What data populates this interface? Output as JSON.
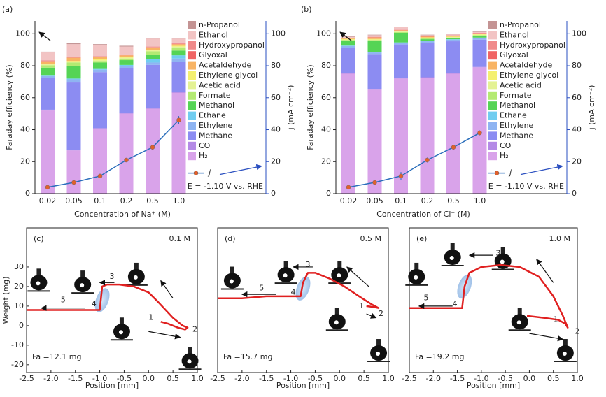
{
  "chart_data": [
    {
      "type": "bar",
      "stacked": true,
      "panel_label": "(a)",
      "xlabel": "Concentration of Na⁺ (M)",
      "ylabel": "Faraday efficiency (%)",
      "y2label": "j (mA cm⁻²)",
      "annotation": "E = -1.10 V vs. RHE",
      "categories": [
        "0.02",
        "0.05",
        "0.1",
        "0.2",
        "0.5",
        "1.0"
      ],
      "ylim": [
        0,
        108
      ],
      "yticks": [
        0,
        20,
        40,
        60,
        80,
        100
      ],
      "y2lim": [
        0,
        108
      ],
      "y2ticks": [
        0,
        20,
        40,
        60,
        80,
        100
      ],
      "series": [
        {
          "name": "H₂",
          "color": "#d9a3ea",
          "values": [
            52,
            27,
            40.5,
            50,
            53,
            63
          ]
        },
        {
          "name": "CO",
          "color": "#b48ae6",
          "values": [
            0.5,
            0.5,
            0.5,
            0.5,
            0.5,
            0.5
          ]
        },
        {
          "name": "Methane",
          "color": "#8c8cf2",
          "values": [
            20,
            42,
            35,
            28,
            27,
            19
          ]
        },
        {
          "name": "Ethylene",
          "color": "#8fb4f2",
          "values": [
            1,
            2,
            1.5,
            1.5,
            1.5,
            2
          ]
        },
        {
          "name": "Ethane",
          "color": "#70cdf0",
          "values": [
            0.3,
            0.5,
            0.5,
            0.5,
            2,
            2
          ]
        },
        {
          "name": "Methanol",
          "color": "#55d455",
          "values": [
            5,
            8,
            4,
            3,
            3,
            3
          ]
        },
        {
          "name": "Formate",
          "color": "#b4ea72",
          "values": [
            1.5,
            2,
            1,
            1,
            2,
            2
          ]
        },
        {
          "name": "Acetic acid",
          "color": "#e4f294",
          "values": [
            0.5,
            0.5,
            0.5,
            0.5,
            0.5,
            0.5
          ]
        },
        {
          "name": "Ethylene glycol",
          "color": "#f4f070",
          "values": [
            0.5,
            0.5,
            0.5,
            0.5,
            0.5,
            0.5
          ]
        },
        {
          "name": "Acetaldehyde",
          "color": "#f8b464",
          "values": [
            1.5,
            2,
            1.5,
            1,
            1.5,
            1
          ]
        },
        {
          "name": "Glyoxal",
          "color": "#f06464",
          "values": [
            0.2,
            0.2,
            0.2,
            0.2,
            0.2,
            0.2
          ]
        },
        {
          "name": "Hydroxypropanol",
          "color": "#f08a8a",
          "values": [
            0.3,
            0.3,
            0.3,
            0.3,
            0.3,
            0.3
          ]
        },
        {
          "name": "Ethanol",
          "color": "#f2c4c4",
          "values": [
            5,
            8,
            7,
            5,
            5,
            3
          ]
        },
        {
          "name": "n-Propanol",
          "color": "#c49494",
          "values": [
            0.5,
            0.5,
            0.5,
            0.5,
            0.5,
            0.5
          ]
        }
      ],
      "line_series": {
        "name": "j",
        "axis": "y2",
        "color": "#2a6ebb",
        "marker_color": "#e0602c",
        "values": [
          4,
          7,
          11,
          21,
          29,
          46
        ],
        "errors": [
          0.5,
          0.5,
          0.5,
          1,
          1.5,
          2.5
        ]
      }
    },
    {
      "type": "bar",
      "stacked": true,
      "panel_label": "(b)",
      "xlabel": "Concentration of Cl⁻ (M)",
      "ylabel": "Faraday efficiency (%)",
      "y2label": "j (mA cm⁻²)",
      "annotation": "E = -1.10 V vs. RHE",
      "categories": [
        "0.02",
        "0.05",
        "0.1",
        "0.2",
        "0.5",
        "1.0"
      ],
      "ylim": [
        0,
        108
      ],
      "yticks": [
        0,
        20,
        40,
        60,
        80,
        100
      ],
      "y2lim": [
        0,
        108
      ],
      "y2ticks": [
        0,
        20,
        40,
        60,
        80,
        100
      ],
      "series": [
        {
          "name": "H₂",
          "color": "#d9a3ea",
          "values": [
            75,
            65,
            72,
            72.5,
            75,
            79
          ]
        },
        {
          "name": "CO",
          "color": "#b48ae6",
          "values": [
            0.3,
            0.3,
            0.3,
            0.3,
            0.3,
            0.3
          ]
        },
        {
          "name": "Methane",
          "color": "#8c8cf2",
          "values": [
            16,
            22,
            21,
            21.5,
            20,
            17
          ]
        },
        {
          "name": "Ethylene",
          "color": "#8fb4f2",
          "values": [
            1,
            1,
            1,
            1,
            1,
            1
          ]
        },
        {
          "name": "Ethane",
          "color": "#70cdf0",
          "values": [
            0.3,
            0.3,
            0.3,
            0.3,
            0.3,
            0.3
          ]
        },
        {
          "name": "Methanol",
          "color": "#55d455",
          "values": [
            3,
            7,
            6,
            1,
            0.5,
            1
          ]
        },
        {
          "name": "Formate",
          "color": "#b4ea72",
          "values": [
            0.5,
            0.5,
            0.5,
            0.5,
            0.5,
            0.5
          ]
        },
        {
          "name": "Acetic acid",
          "color": "#e4f294",
          "values": [
            0.3,
            0.3,
            0.3,
            0.3,
            0.3,
            0.3
          ]
        },
        {
          "name": "Ethylene glycol",
          "color": "#f4f070",
          "values": [
            0.3,
            0.3,
            0.3,
            0.3,
            0.3,
            0.3
          ]
        },
        {
          "name": "Acetaldehyde",
          "color": "#f8b464",
          "values": [
            0.5,
            1,
            0.5,
            0.5,
            0.5,
            0.5
          ]
        },
        {
          "name": "Glyoxal",
          "color": "#f06464",
          "values": [
            0.2,
            0.2,
            0.2,
            0.2,
            0.2,
            0.2
          ]
        },
        {
          "name": "Hydroxypropanol",
          "color": "#f08a8a",
          "values": [
            0.2,
            0.2,
            0.2,
            0.2,
            0.2,
            0.2
          ]
        },
        {
          "name": "Ethanol",
          "color": "#f2c4c4",
          "values": [
            0.5,
            1,
            1.5,
            0.5,
            0.5,
            0.5
          ]
        },
        {
          "name": "n-Propanol",
          "color": "#c49494",
          "values": [
            0.3,
            0.3,
            0.3,
            0.3,
            0.3,
            0.3
          ]
        }
      ],
      "line_series": {
        "name": "j",
        "axis": "y2",
        "color": "#2a6ebb",
        "marker_color": "#e0602c",
        "values": [
          4,
          7,
          11,
          21,
          29,
          38
        ],
        "errors": [
          0.5,
          0.5,
          2.5,
          1.5,
          1.5,
          1.5
        ]
      }
    },
    {
      "type": "line",
      "panel_label": "(c)",
      "concentration": "0.1 M",
      "fa_label": "Fa =12.1 mg",
      "xlabel": "Position [mm]",
      "ylabel": "Weight (mg)",
      "step_labels": [
        "1",
        "2",
        "3",
        "4",
        "5"
      ],
      "xlim": [
        -2.5,
        1.0
      ],
      "xticks": [
        {
          "value": -2.5,
          "label": "-2.5"
        },
        {
          "value": -2.0,
          "label": "-2.0"
        },
        {
          "value": -1.5,
          "label": "-1.5"
        },
        {
          "value": -1.0,
          "label": "-1.0"
        },
        {
          "value": -0.5,
          "label": "-0.5"
        },
        {
          "value": 0,
          "label": "0.0"
        },
        {
          "value": 0.5,
          "label": "0.5"
        },
        {
          "value": 1.0,
          "label": "1.0"
        }
      ],
      "ylim": [
        -24,
        50
      ],
      "yticks": [
        -20,
        -10,
        0,
        10,
        20,
        30
      ],
      "x": [
        0.25,
        0.4,
        0.6,
        0.75,
        0.8,
        0.7,
        0.5,
        0.2,
        0,
        -0.3,
        -0.6,
        -0.85,
        -0.95,
        -1.0,
        -1.5,
        -2.0,
        -2.5
      ],
      "series": [
        {
          "color": "#e02020",
          "values": [
            2,
            1,
            -1,
            -2,
            -1,
            0,
            4,
            12,
            17,
            20,
            21,
            21,
            20,
            8,
            8,
            8,
            8
          ]
        }
      ]
    },
    {
      "type": "line",
      "panel_label": "(d)",
      "concentration": "0.5 M",
      "fa_label": "Fa =15.7 mg",
      "xlabel": "Position [mm]",
      "step_labels": [
        "1",
        "2",
        "3",
        "4",
        "5"
      ],
      "xlim": [
        -2.5,
        1.0
      ],
      "xticks": [
        {
          "value": -2.5,
          "label": "-2.5"
        },
        {
          "value": -2.0,
          "label": "-2.0"
        },
        {
          "value": -1.5,
          "label": "-1.5"
        },
        {
          "value": -1.0,
          "label": "-1.0"
        },
        {
          "value": -0.5,
          "label": "-0.5"
        },
        {
          "value": 0,
          "label": "0.0"
        },
        {
          "value": 0.5,
          "label": "0.5"
        },
        {
          "value": 1.0,
          "label": "1.0"
        }
      ],
      "ylim": [
        -24,
        50
      ],
      "x": [
        0.55,
        0.7,
        0.8,
        0.65,
        0.4,
        0.1,
        -0.2,
        -0.5,
        -0.65,
        -0.75,
        -0.8,
        -1.5,
        -2.0,
        -2.5
      ],
      "series": [
        {
          "color": "#e02020",
          "values": [
            10,
            9.5,
            9,
            11,
            15,
            20,
            24,
            27,
            27,
            22,
            15,
            15,
            14,
            14
          ]
        }
      ]
    },
    {
      "type": "line",
      "panel_label": "(e)",
      "concentration": "1.0 M",
      "fa_label": "Fa =19.2 mg",
      "xlabel": "Position [mm]",
      "step_labels": [
        "1",
        "2",
        "3",
        "4",
        "5"
      ],
      "xlim": [
        -2.5,
        1.0
      ],
      "xticks": [
        {
          "value": -2.5,
          "label": "-2.5"
        },
        {
          "value": -2.0,
          "label": "-2.0"
        },
        {
          "value": -1.5,
          "label": "-1.5"
        },
        {
          "value": -1.0,
          "label": "-1.0"
        },
        {
          "value": -0.5,
          "label": "-0.5"
        },
        {
          "value": 0,
          "label": "0.0"
        },
        {
          "value": 0.5,
          "label": "0.5"
        },
        {
          "value": 1.0,
          "label": "1.0"
        }
      ],
      "ylim": [
        -24,
        50
      ],
      "x": [
        -0.05,
        0.3,
        0.6,
        0.75,
        0.8,
        0.7,
        0.5,
        0.2,
        -0.2,
        -0.6,
        -1.0,
        -1.25,
        -1.35,
        -1.4,
        -2.0,
        -2.5
      ],
      "series": [
        {
          "color": "#e02020",
          "values": [
            5,
            4,
            3,
            1,
            -1,
            5,
            15,
            25,
            30,
            31,
            30,
            27,
            20,
            9,
            9,
            9
          ]
        }
      ]
    }
  ]
}
